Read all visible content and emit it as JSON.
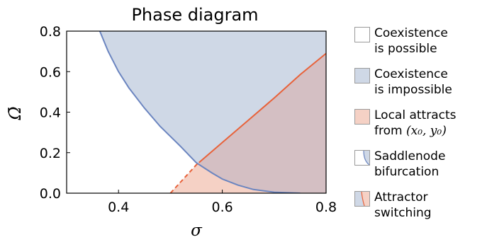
{
  "chart_data": {
    "type": "area",
    "title": "Phase diagram",
    "xlabel": "σ",
    "ylabel": "Ω̄",
    "xlim": [
      0.3,
      0.8
    ],
    "ylim": [
      0.0,
      0.8
    ],
    "xticks": [
      "0.4",
      "0.6",
      "0.8"
    ],
    "xtick_values": [
      0.4,
      0.6,
      0.8
    ],
    "yticks": [
      "0.0",
      "0.2",
      "0.4",
      "0.6",
      "0.8"
    ],
    "ytick_values": [
      0.0,
      0.2,
      0.4,
      0.6,
      0.8
    ],
    "grid": false,
    "legend_position": "right",
    "series": [
      {
        "name": "Saddlenode bifurcation",
        "color": "#6b85c0",
        "fill": "#cfd8e6",
        "x": [
          0.364,
          0.38,
          0.4,
          0.42,
          0.45,
          0.48,
          0.5,
          0.52,
          0.55,
          0.58,
          0.6,
          0.63,
          0.66,
          0.7,
          0.75
        ],
        "y": [
          0.8,
          0.7,
          0.6,
          0.52,
          0.42,
          0.33,
          0.28,
          0.23,
          0.15,
          0.1,
          0.07,
          0.04,
          0.018,
          0.005,
          0.0
        ]
      },
      {
        "name": "Attractor switching",
        "color": "#e8623a",
        "fill": "#f5d1c5",
        "x": [
          0.5,
          0.55,
          0.6,
          0.65,
          0.7,
          0.75,
          0.8
        ],
        "y": [
          0.0,
          0.14,
          0.25,
          0.36,
          0.47,
          0.585,
          0.69
        ],
        "dashed_until_x": 0.555
      }
    ],
    "regions": [
      {
        "name": "Coexistence is possible",
        "color": "#ffffff"
      },
      {
        "name": "Coexistence is impossible",
        "color": "#cfd8e6"
      },
      {
        "name": "Local attracts from (x0, y0)",
        "color": "#f5d1c5"
      }
    ],
    "overlap_color": "#d4bfc3"
  },
  "legend": {
    "items": [
      {
        "kind": "white",
        "text": "Coexistence\nis possible"
      },
      {
        "kind": "blue",
        "text": "Coexistence\nis impossible"
      },
      {
        "kind": "red",
        "text": "Local attracts\nfrom ",
        "math": "(x₀, y₀)"
      },
      {
        "kind": "saddle",
        "text": "Saddlenode\nbifurcation"
      },
      {
        "kind": "switch",
        "text": "Attractor\nswitching"
      }
    ]
  }
}
